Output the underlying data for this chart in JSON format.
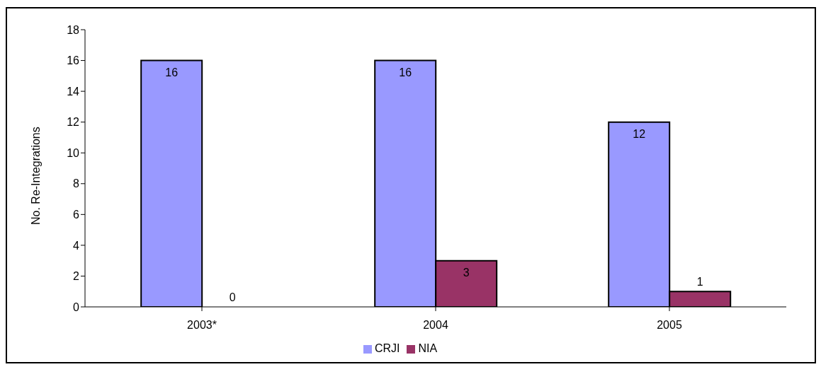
{
  "chart_data": {
    "type": "bar",
    "ylabel": "No. Re-Integrations",
    "categories": [
      "2003*",
      "2004",
      "2005"
    ],
    "series": [
      {
        "name": "CRJI",
        "color": "#9999ff",
        "values": [
          16,
          16,
          12
        ]
      },
      {
        "name": "NIA",
        "color": "#993366",
        "values": [
          0,
          3,
          1
        ]
      }
    ],
    "ylim": [
      0,
      18
    ],
    "yticks": [
      0,
      2,
      4,
      6,
      8,
      10,
      12,
      14,
      16,
      18
    ],
    "grid": false,
    "legend": "bottom",
    "data_labels": true
  }
}
